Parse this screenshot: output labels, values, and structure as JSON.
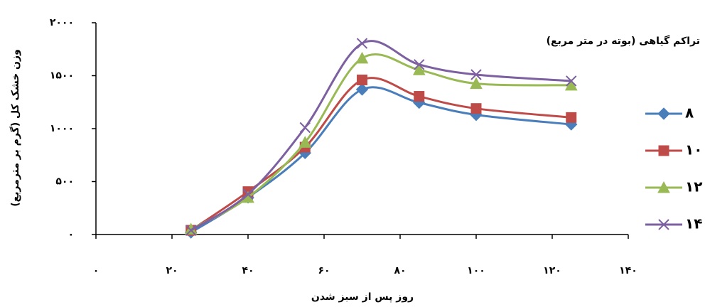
{
  "chart_data": {
    "type": "line",
    "y_label": "وزن خشک کل (گرم بر مترمربع)",
    "x_label": "روز پس از سبز شدن",
    "legend_title": "تراکم گیاهی (بوته در متر مربع)",
    "x": [
      25,
      40,
      55,
      70,
      85,
      100,
      125
    ],
    "series": [
      {
        "name": "۸",
        "color": "#4a7ebb",
        "marker": "diamond",
        "values": [
          20,
          350,
          770,
          1370,
          1245,
          1130,
          1040
        ]
      },
      {
        "name": "۱۰",
        "color": "#be4b48",
        "marker": "square",
        "values": [
          40,
          405,
          825,
          1460,
          1305,
          1190,
          1105
        ]
      },
      {
        "name": "۱۲",
        "color": "#98b954",
        "marker": "triangle",
        "values": [
          50,
          350,
          870,
          1665,
          1555,
          1425,
          1410
        ]
      },
      {
        "name": "۱۴",
        "color": "#7d60a0",
        "marker": "x",
        "values": [
          40,
          380,
          1010,
          1805,
          1605,
          1510,
          1450
        ]
      }
    ],
    "xlim": [
      0,
      140
    ],
    "xticks": [
      {
        "value": 0,
        "label": "۰"
      },
      {
        "value": 20,
        "label": "۲۰"
      },
      {
        "value": 40,
        "label": "۴۰"
      },
      {
        "value": 60,
        "label": "۶۰"
      },
      {
        "value": 80,
        "label": "۸۰"
      },
      {
        "value": 100,
        "label": "۱۰۰"
      },
      {
        "value": 120,
        "label": "۱۲۰"
      },
      {
        "value": 140,
        "label": "۱۴۰"
      }
    ],
    "ylim": [
      0,
      2000
    ],
    "yticks": [
      {
        "value": 0,
        "label": "۰"
      },
      {
        "value": 500,
        "label": "۵۰۰"
      },
      {
        "value": 1000,
        "label": "۱۰۰۰"
      },
      {
        "value": 1500,
        "label": "۱۵۰۰"
      },
      {
        "value": 2000,
        "label": "۲۰۰۰"
      }
    ],
    "grid": false,
    "legend_position": "right"
  }
}
